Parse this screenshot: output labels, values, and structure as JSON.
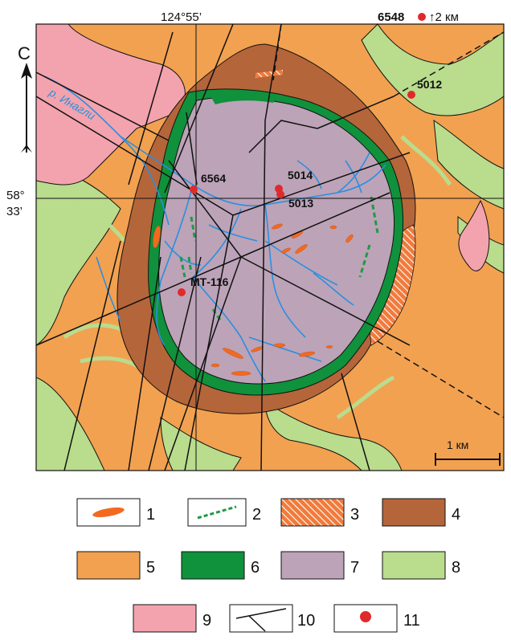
{
  "map": {
    "coords": {
      "longitude_label": "124°55’",
      "latitude_label_deg": "58°",
      "latitude_label_min": "33’"
    },
    "north_arrow": {
      "label": "С"
    },
    "river": {
      "label": "р. Инагли"
    },
    "offset_point": {
      "label": "6548",
      "offset": "↑2 км"
    },
    "sample_points": [
      {
        "id": "5012"
      },
      {
        "id": "6564"
      },
      {
        "id": "5014"
      },
      {
        "id": "5013"
      },
      {
        "id": "МТ-116"
      }
    ],
    "scale_bar": {
      "label": "1 км"
    }
  },
  "legend": {
    "items": [
      {
        "num": "1",
        "kind": "orange-lens",
        "color": "#f26a1f"
      },
      {
        "num": "2",
        "kind": "green-dash",
        "color": "#1e9a46"
      },
      {
        "num": "3",
        "kind": "orange-hatch",
        "color": "#f07b3c"
      },
      {
        "num": "4",
        "kind": "brown",
        "color": "#b5653a"
      },
      {
        "num": "5",
        "kind": "orange",
        "color": "#f2a150"
      },
      {
        "num": "6",
        "kind": "dark-green",
        "color": "#10913c"
      },
      {
        "num": "7",
        "kind": "lilac",
        "color": "#bca3b8"
      },
      {
        "num": "8",
        "kind": "light-green",
        "color": "#b9dc8d"
      },
      {
        "num": "9",
        "kind": "pink",
        "color": "#f3a3ae"
      },
      {
        "num": "10",
        "kind": "faults",
        "color": "#111111"
      },
      {
        "num": "11",
        "kind": "red-dot",
        "color": "#e02a2a"
      }
    ]
  }
}
